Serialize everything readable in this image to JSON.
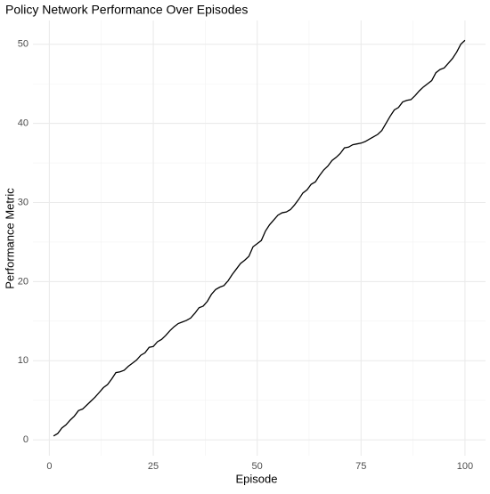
{
  "chart_data": {
    "type": "line",
    "title": "Policy Network Performance Over Episodes",
    "x_label": "Episode",
    "y_label": "Performance Metric",
    "x": [
      1,
      2,
      3,
      4,
      5,
      6,
      7,
      8,
      9,
      10,
      11,
      12,
      13,
      14,
      15,
      16,
      17,
      18,
      19,
      20,
      21,
      22,
      23,
      24,
      25,
      26,
      27,
      28,
      29,
      30,
      31,
      32,
      33,
      34,
      35,
      36,
      37,
      38,
      39,
      40,
      41,
      42,
      43,
      44,
      45,
      46,
      47,
      48,
      49,
      50,
      51,
      52,
      53,
      54,
      55,
      56,
      57,
      58,
      59,
      60,
      61,
      62,
      63,
      64,
      65,
      66,
      67,
      68,
      69,
      70,
      71,
      72,
      73,
      74,
      75,
      76,
      77,
      78,
      79,
      80,
      81,
      82,
      83,
      84,
      85,
      86,
      87,
      88,
      89,
      90,
      91,
      92,
      93,
      94,
      95,
      96,
      97,
      98,
      99,
      100
    ],
    "series": [
      {
        "color": "#000000",
        "values": [
          0.5,
          0.8,
          1.5,
          1.9,
          2.5,
          3.0,
          3.7,
          3.9,
          4.4,
          4.9,
          5.4,
          6.0,
          6.6,
          7.0,
          7.7,
          8.5,
          8.6,
          8.8,
          9.3,
          9.7,
          10.1,
          10.7,
          11.0,
          11.7,
          11.8,
          12.4,
          12.7,
          13.2,
          13.8,
          14.3,
          14.7,
          14.9,
          15.1,
          15.4,
          16.0,
          16.7,
          16.9,
          17.5,
          18.4,
          19.0,
          19.3,
          19.5,
          20.1,
          20.9,
          21.6,
          22.3,
          22.7,
          23.2,
          24.4,
          24.8,
          25.2,
          26.4,
          27.2,
          27.8,
          28.4,
          28.7,
          28.8,
          29.1,
          29.7,
          30.4,
          31.2,
          31.6,
          32.3,
          32.6,
          33.4,
          34.1,
          34.6,
          35.3,
          35.7,
          36.2,
          36.9,
          37.0,
          37.3,
          37.4,
          37.5,
          37.7,
          38.0,
          38.3,
          38.6,
          39.1,
          40.0,
          40.9,
          41.7,
          42.0,
          42.7,
          42.9,
          43.0,
          43.5,
          44.1,
          44.6,
          45.0,
          45.4,
          46.4,
          46.8,
          47.0,
          47.6,
          48.2,
          49.0,
          50.0,
          50.5
        ]
      }
    ],
    "xlim": [
      -3.95,
      104.95
    ],
    "xticks": [
      0,
      25,
      50,
      75,
      100
    ],
    "ylim": [
      -2,
      53
    ],
    "yticks": [
      0,
      10,
      20,
      30,
      40,
      50
    ],
    "grid": true
  }
}
